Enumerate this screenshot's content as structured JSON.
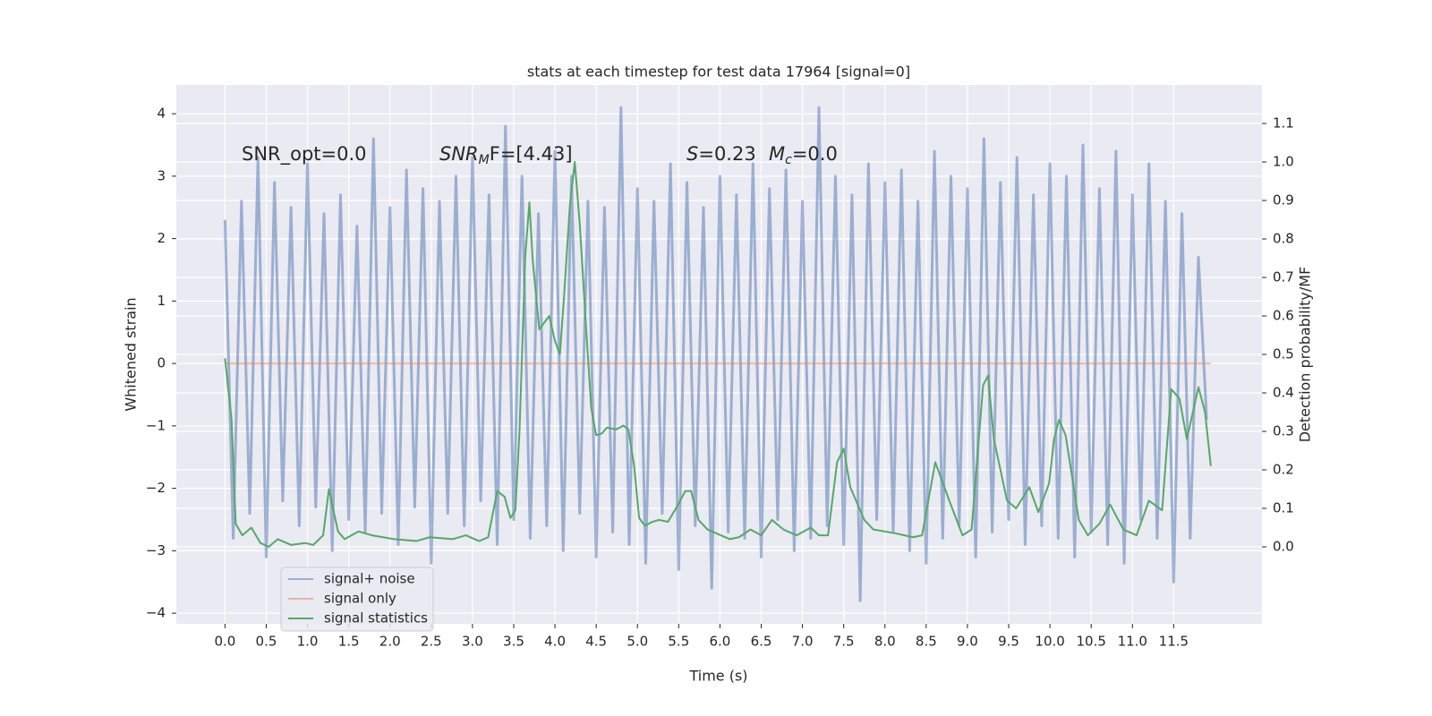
{
  "chart_data": {
    "type": "line",
    "title": "stats at each timestep for test data 17964 [signal=0]",
    "xlabel": "Time (s)",
    "ylabel": "Whitened strain",
    "y2label": "Detection probability/MF",
    "annotations": [
      [
        "SNR_opt=0.0"
      ],
      [
        "SNR",
        "M",
        "F=[4.43]"
      ],
      [
        "S",
        "=0.23"
      ],
      [
        "M",
        "c",
        "=0.0"
      ]
    ],
    "xlim": [
      -0.59,
      12.57
    ],
    "ylim": [
      -4.17,
      4.46
    ],
    "y2lim": [
      -0.2,
      1.2
    ],
    "xticks": [
      {
        "value": 0,
        "label": "0.0"
      },
      0.5,
      {
        "value": 1,
        "label": "1.0"
      },
      1.5,
      {
        "value": 2,
        "label": "2.0"
      },
      2.5,
      {
        "value": 3,
        "label": "3.0"
      },
      3.5,
      {
        "value": 4,
        "label": "4.0"
      },
      4.5,
      {
        "value": 5,
        "label": "5.0"
      },
      5.5,
      {
        "value": 6,
        "label": "6.0"
      },
      6.5,
      {
        "value": 7,
        "label": "7.0"
      },
      7.5,
      {
        "value": 8,
        "label": "8.0"
      },
      8.5,
      {
        "value": 9,
        "label": "9.0"
      },
      9.5,
      {
        "value": 10,
        "label": "10.0"
      },
      10.5,
      {
        "value": 11,
        "label": "11.0"
      },
      11.5
    ],
    "yticks": [
      {
        "value": -4,
        "label": "−4"
      },
      {
        "value": -3,
        "label": "−3"
      },
      {
        "value": -2,
        "label": "−2"
      },
      {
        "value": -1,
        "label": "−1"
      },
      0,
      1,
      2,
      3,
      4
    ],
    "y2ticks": [
      {
        "value": 0,
        "label": "0.0"
      },
      0.1,
      0.2,
      0.3,
      0.4,
      0.5,
      0.6,
      0.7,
      0.8,
      0.9,
      {
        "value": 1,
        "label": "1.0"
      },
      1.1
    ],
    "grid": true,
    "legend": "lower left",
    "series": [
      {
        "name": "signal+ noise",
        "color": "#4c72b0",
        "x": [
          0,
          0.1,
          0.2,
          0.3,
          0.4,
          0.5,
          0.6,
          0.7,
          0.8,
          0.9,
          1,
          1.1,
          1.2,
          1.3,
          1.4,
          1.5,
          1.6,
          1.7,
          1.8,
          1.9,
          2,
          2.1,
          2.2,
          2.3,
          2.4,
          2.5,
          2.6,
          2.7,
          2.8,
          2.9,
          3,
          3.1,
          3.2,
          3.3,
          3.4,
          3.5,
          3.6,
          3.7,
          3.8,
          3.9,
          4,
          4.1,
          4.2,
          4.3,
          4.4,
          4.5,
          4.6,
          4.7,
          4.8,
          4.9,
          5,
          5.1,
          5.2,
          5.3,
          5.4,
          5.5,
          5.6,
          5.7,
          5.8,
          5.9,
          6,
          6.1,
          6.2,
          6.3,
          6.4,
          6.5,
          6.6,
          6.7,
          6.8,
          6.9,
          7,
          7.1,
          7.2,
          7.3,
          7.4,
          7.5,
          7.6,
          7.7,
          7.8,
          7.9,
          8,
          8.1,
          8.2,
          8.3,
          8.4,
          8.5,
          8.6,
          8.7,
          8.8,
          8.9,
          9,
          9.1,
          9.2,
          9.3,
          9.4,
          9.5,
          9.6,
          9.7,
          9.8,
          9.9,
          10,
          10.1,
          10.2,
          10.3,
          10.4,
          10.5,
          10.6,
          10.7,
          10.8,
          10.9,
          11,
          11.1,
          11.2,
          11.3,
          11.4,
          11.5,
          11.6,
          11.7,
          11.8,
          11.9
        ],
        "values": [
          2.3,
          -2.8,
          2.6,
          -2.4,
          3.3,
          -3.1,
          2.9,
          -2.2,
          2.5,
          -2.6,
          3.2,
          -2.3,
          2.4,
          -3.0,
          2.7,
          -2.5,
          2.2,
          -2.7,
          3.6,
          -2.4,
          2.5,
          -2.9,
          3.1,
          -2.3,
          2.8,
          -3.2,
          2.6,
          -2.4,
          3.0,
          -2.6,
          3.3,
          -2.2,
          2.7,
          -2.9,
          3.8,
          -2.5,
          3.0,
          -2.8,
          2.4,
          -2.6,
          3.4,
          -3.0,
          3.0,
          -2.4,
          2.6,
          -3.1,
          2.5,
          -2.7,
          4.1,
          -2.9,
          2.8,
          -3.2,
          2.6,
          -2.4,
          3.2,
          -3.3,
          2.9,
          -2.6,
          2.5,
          -3.6,
          3.0,
          -2.7,
          2.7,
          -2.8,
          3.2,
          -3.1,
          2.8,
          -2.5,
          3.1,
          -3.0,
          2.6,
          -2.8,
          4.1,
          -2.6,
          3.0,
          -2.9,
          2.7,
          -3.8,
          3.2,
          -2.5,
          2.9,
          -2.7,
          3.1,
          -3.0,
          2.6,
          -3.2,
          3.4,
          -2.8,
          3.0,
          -2.6,
          2.8,
          -3.1,
          3.6,
          -2.7,
          2.9,
          -2.5,
          3.3,
          -2.9,
          2.7,
          -2.6,
          3.2,
          -2.8,
          3.0,
          -3.1,
          3.5,
          -2.7,
          2.8,
          -2.9,
          3.4,
          -3.2,
          2.7,
          -2.5,
          3.2,
          -2.8,
          2.6,
          -3.5,
          2.4,
          -2.8,
          1.7,
          -0.9
        ]
      },
      {
        "name": "signal only",
        "color": "#dd8452",
        "x": [
          0,
          11.95
        ],
        "values": [
          0,
          0
        ]
      },
      {
        "name": "signal statistics",
        "color": "#55a868",
        "axis": "y2",
        "x": [
          0,
          0.08,
          0.13,
          0.21,
          0.32,
          0.43,
          0.53,
          0.64,
          0.8,
          0.97,
          1.07,
          1.19,
          1.26,
          1.37,
          1.45,
          1.62,
          1.78,
          2.05,
          2.32,
          2.48,
          2.76,
          2.92,
          3.08,
          3.19,
          3.3,
          3.39,
          3.46,
          3.52,
          3.57,
          3.64,
          3.69,
          3.73,
          3.81,
          3.93,
          4.0,
          4.06,
          4.11,
          4.18,
          4.24,
          4.3,
          4.38,
          4.44,
          4.5,
          4.57,
          4.63,
          4.74,
          4.83,
          4.89,
          4.96,
          5.02,
          5.09,
          5.18,
          5.26,
          5.37,
          5.48,
          5.58,
          5.65,
          5.74,
          5.85,
          6.01,
          6.12,
          6.23,
          6.37,
          6.5,
          6.63,
          6.77,
          6.93,
          7.1,
          7.2,
          7.31,
          7.42,
          7.5,
          7.58,
          7.75,
          7.86,
          8.13,
          8.34,
          8.45,
          8.61,
          8.78,
          8.94,
          9.05,
          9.19,
          9.25,
          9.32,
          9.48,
          9.59,
          9.75,
          9.86,
          9.99,
          10.05,
          10.11,
          10.19,
          10.35,
          10.46,
          10.6,
          10.73,
          10.89,
          11.05,
          11.2,
          11.36,
          11.47,
          11.57,
          11.66,
          11.8,
          11.88,
          11.95
        ],
        "values": [
          0.49,
          0.33,
          0.06,
          0.03,
          0.05,
          0.01,
          0.0,
          0.02,
          0.005,
          0.01,
          0.005,
          0.03,
          0.15,
          0.04,
          0.02,
          0.04,
          0.03,
          0.02,
          0.015,
          0.025,
          0.02,
          0.03,
          0.015,
          0.025,
          0.145,
          0.13,
          0.075,
          0.095,
          0.3,
          0.755,
          0.895,
          0.745,
          0.565,
          0.6,
          0.535,
          0.5,
          0.65,
          0.885,
          1.0,
          0.84,
          0.56,
          0.36,
          0.29,
          0.295,
          0.31,
          0.305,
          0.315,
          0.305,
          0.21,
          0.075,
          0.055,
          0.065,
          0.07,
          0.065,
          0.105,
          0.145,
          0.145,
          0.07,
          0.045,
          0.03,
          0.02,
          0.025,
          0.045,
          0.03,
          0.07,
          0.045,
          0.03,
          0.05,
          0.03,
          0.03,
          0.22,
          0.255,
          0.155,
          0.07,
          0.045,
          0.035,
          0.025,
          0.03,
          0.22,
          0.12,
          0.03,
          0.045,
          0.42,
          0.445,
          0.28,
          0.12,
          0.1,
          0.155,
          0.09,
          0.165,
          0.28,
          0.33,
          0.29,
          0.07,
          0.03,
          0.06,
          0.11,
          0.045,
          0.03,
          0.12,
          0.095,
          0.41,
          0.385,
          0.28,
          0.415,
          0.35,
          0.21
        ]
      }
    ]
  }
}
